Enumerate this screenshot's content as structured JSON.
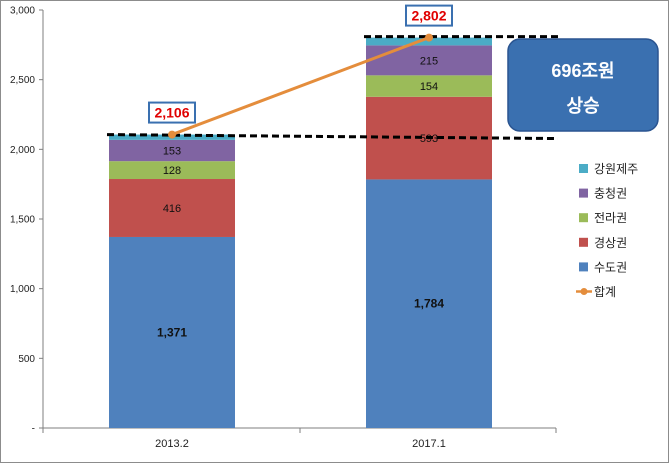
{
  "chart_data": {
    "type": "bar",
    "stacked": true,
    "categories": [
      "2013.2",
      "2017.1"
    ],
    "series": [
      {
        "name": "수도권",
        "values": [
          1371,
          1784
        ],
        "color": "#4f81bd"
      },
      {
        "name": "경상권",
        "values": [
          416,
          593
        ],
        "color": "#c0504d"
      },
      {
        "name": "전라권",
        "values": [
          128,
          154
        ],
        "color": "#9bbb59"
      },
      {
        "name": "충청권",
        "values": [
          153,
          215
        ],
        "color": "#8064a2"
      },
      {
        "name": "강원제주",
        "values": [
          38,
          56
        ],
        "color": "#4bacc6"
      }
    ],
    "total_line": {
      "name": "합계",
      "values": [
        2106,
        2802
      ],
      "labels": [
        "2,106",
        "2,802"
      ],
      "color": "#e48d3c"
    },
    "segment_labels": [
      [
        "1,371",
        "416",
        "128",
        "153",
        ""
      ],
      [
        "1,784",
        "593",
        "154",
        "215",
        ""
      ]
    ],
    "y_ticks": [
      "-",
      "500",
      "1,000",
      "1,500",
      "2,000",
      "2,500",
      "3,000"
    ],
    "y_tick_values": [
      0,
      500,
      1000,
      1500,
      2000,
      2500,
      3000
    ],
    "ylim": [
      0,
      3000
    ],
    "legend_position": "right",
    "legend_order": [
      "강원제주",
      "충청권",
      "전라권",
      "경상권",
      "수도권",
      "합계"
    ],
    "callout": {
      "line1": "696조원",
      "line2": "상승",
      "color": "#3a70b0"
    },
    "grid": false
  }
}
